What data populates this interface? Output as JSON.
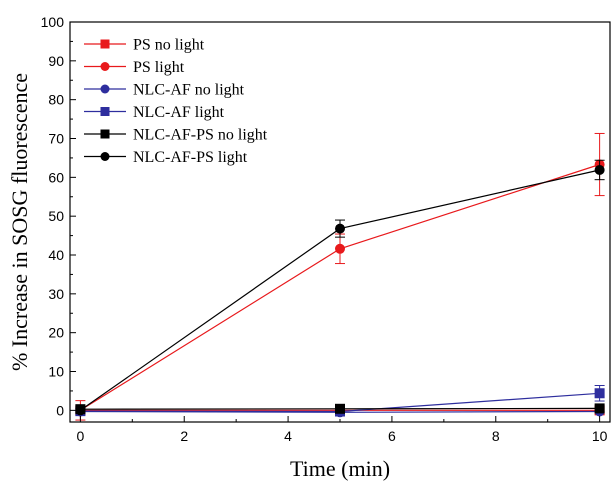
{
  "chart_data": {
    "type": "line",
    "title": "",
    "xlabel": "Time (min)",
    "ylabel": "% Increase in SOSG fluorescence",
    "xlim": [
      -0.2,
      10.2
    ],
    "ylim": [
      -3,
      100
    ],
    "x_ticks": [
      0,
      2,
      4,
      6,
      8,
      10
    ],
    "y_ticks": [
      0,
      10,
      20,
      30,
      40,
      50,
      60,
      70,
      80,
      90,
      100
    ],
    "x_tick_labels": [
      "0",
      "2",
      "4",
      "6",
      "8",
      "10"
    ],
    "y_tick_labels": [
      "0",
      "10",
      "20",
      "30",
      "40",
      "50",
      "60",
      "70",
      "80",
      "90",
      "100"
    ],
    "grid": false,
    "legend_position": "top-left",
    "x": [
      0,
      5,
      10
    ],
    "series": [
      {
        "name": "PS no light",
        "values": [
          0,
          0,
          0
        ],
        "errors": [
          0,
          0,
          0
        ],
        "color": "#e8191c",
        "marker": "square"
      },
      {
        "name": "PS light",
        "values": [
          0,
          41.6,
          63.3
        ],
        "errors": [
          2.5,
          3.8,
          8.0
        ],
        "color": "#e8191c",
        "marker": "circle"
      },
      {
        "name": "NLC-AF no light",
        "values": [
          -0.3,
          -0.5,
          -0.3
        ],
        "errors": [
          0,
          0,
          0
        ],
        "color": "#2e2e9e",
        "marker": "circle"
      },
      {
        "name": "NLC-AF light",
        "values": [
          -0.2,
          -0.3,
          4.4
        ],
        "errors": [
          0,
          0,
          2.0
        ],
        "color": "#2e2e9e",
        "marker": "square"
      },
      {
        "name": "NLC-AF-PS no light",
        "values": [
          0.3,
          0.4,
          0.5
        ],
        "errors": [
          0,
          0,
          0
        ],
        "color": "#000000",
        "marker": "square"
      },
      {
        "name": "NLC-AF-PS light",
        "values": [
          0,
          46.8,
          61.9
        ],
        "errors": [
          0.5,
          2.2,
          2.5
        ],
        "color": "#000000",
        "marker": "circle"
      }
    ]
  }
}
